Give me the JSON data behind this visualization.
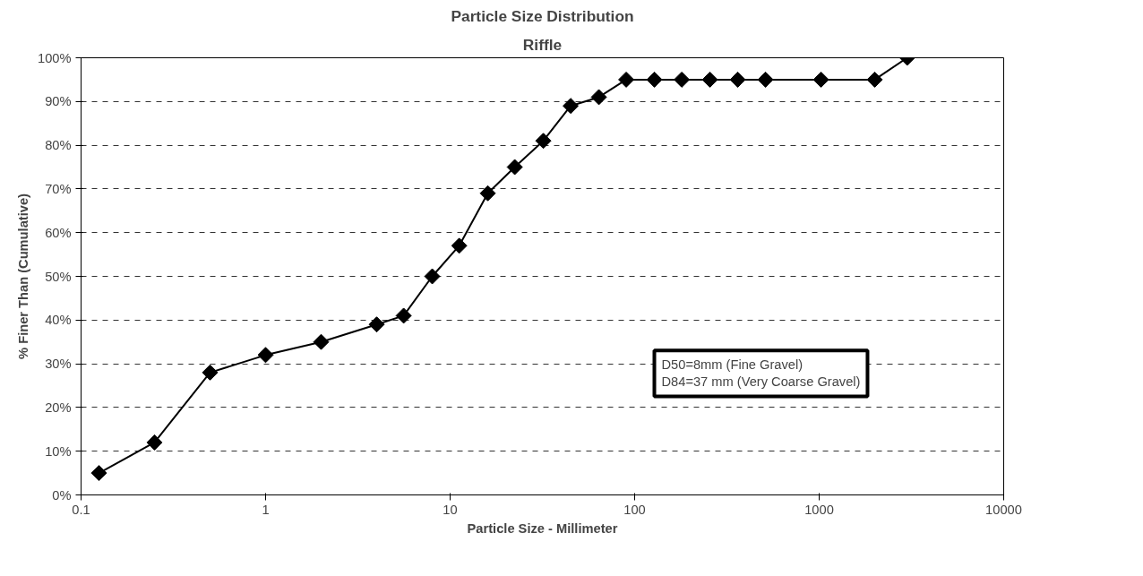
{
  "chart_data": {
    "type": "line",
    "title": "Particle Size Distribution",
    "subtitle": "Riffle",
    "xlabel": "Particle Size - Millimeter",
    "ylabel": "% Finer Than (Cumulative)",
    "x": [
      0.125,
      0.25,
      0.5,
      1,
      2,
      4,
      5.6,
      8,
      11.2,
      16,
      22.4,
      32,
      45,
      64,
      90,
      128,
      180,
      256,
      362,
      512,
      1024,
      2000,
      3000
    ],
    "series": [
      {
        "color": "#000000",
        "values": [
          5,
          12,
          28,
          32,
          35,
          39,
          41,
          50,
          57,
          69,
          75,
          81,
          89,
          91,
          95,
          95,
          95,
          95,
          95,
          95,
          95,
          95,
          100
        ]
      }
    ],
    "log": "x",
    "xlim": [
      0.1,
      10000
    ],
    "xticks": [
      0.1,
      1,
      10,
      100,
      1000,
      10000
    ],
    "ylim": [
      0,
      100
    ],
    "yticks": [
      {
        "value": 0,
        "label": "0%"
      },
      {
        "value": 10,
        "label": "10%"
      },
      {
        "value": 20,
        "label": "20%"
      },
      {
        "value": 30,
        "label": "30%"
      },
      {
        "value": 40,
        "label": "40%"
      },
      {
        "value": 50,
        "label": "50%"
      },
      {
        "value": 60,
        "label": "60%"
      },
      {
        "value": 70,
        "label": "70%"
      },
      {
        "value": 80,
        "label": "80%"
      },
      {
        "value": 90,
        "label": "90%"
      },
      {
        "value": 100,
        "label": "100%"
      }
    ],
    "grid": "y",
    "marker": "diamond",
    "line_style": "solid",
    "annotations": [
      "D50=8mm (Fine Gravel)\nD84=37 mm (Very Coarse Gravel)"
    ]
  }
}
